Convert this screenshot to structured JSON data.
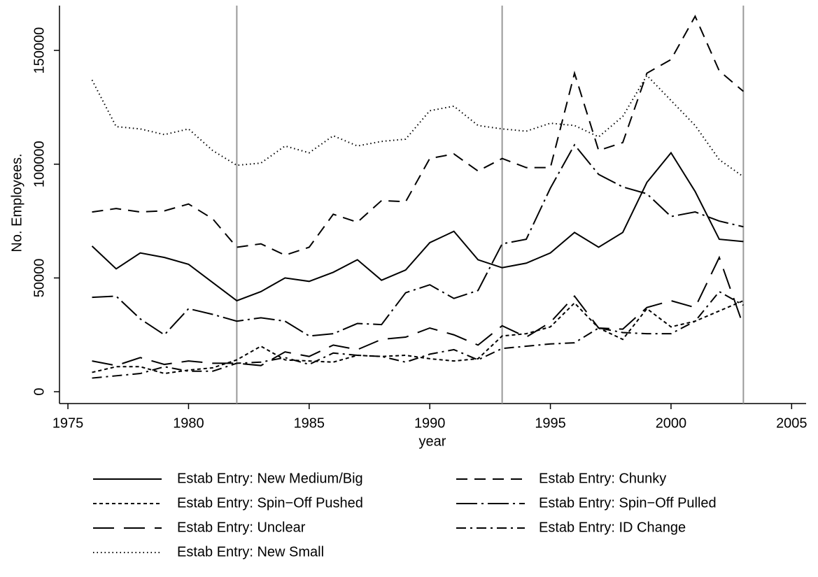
{
  "chart_data": {
    "type": "line",
    "x_label": "year",
    "y_label": "No. Employees.",
    "x": [
      1976,
      1977,
      1978,
      1979,
      1980,
      1981,
      1982,
      1983,
      1984,
      1985,
      1986,
      1987,
      1988,
      1989,
      1990,
      1991,
      1992,
      1993,
      1994,
      1995,
      1996,
      1997,
      1998,
      1999,
      2000,
      2001,
      2002,
      2003
    ],
    "xlim": [
      1974.65,
      2005.6
    ],
    "xticks": [
      1975,
      1980,
      1985,
      1990,
      1995,
      2000,
      2005
    ],
    "ylim": [
      -5200,
      169700
    ],
    "yticks": [
      0,
      50000,
      100000,
      150000
    ],
    "reference_lines": [
      1982,
      1993,
      2003
    ],
    "reference_color": "#999999",
    "legend": "bottom",
    "series": [
      {
        "name": "Estab Entry: New Medium/Big",
        "color": "#000000",
        "dash": "none",
        "values": [
          64000,
          54000,
          61000,
          59000,
          56000,
          48000,
          40000,
          44000,
          50000,
          48500,
          52500,
          58000,
          49000,
          53500,
          65500,
          70500,
          58000,
          54500,
          56500,
          61000,
          70000,
          63500,
          70000,
          92000,
          105000,
          88000,
          67000,
          66000
        ]
      },
      {
        "name": "Estab Entry: Chunky",
        "color": "#000000",
        "dash": "16,10",
        "values": [
          79000,
          80500,
          79000,
          79500,
          82500,
          76000,
          63500,
          65000,
          60000,
          63500,
          78000,
          74500,
          84000,
          83500,
          102500,
          104500,
          97000,
          102500,
          98500,
          98500,
          140000,
          106000,
          109500,
          140000,
          146000,
          165000,
          141000,
          132000
        ]
      },
      {
        "name": "Estab Entry: Spin−Off Pushed",
        "color": "#000000",
        "dash": "5,4",
        "values": [
          8500,
          11000,
          11000,
          8000,
          9500,
          10500,
          14000,
          20000,
          14000,
          13500,
          13000,
          16000,
          15500,
          16000,
          14500,
          13500,
          14500,
          24500,
          25500,
          28500,
          39000,
          28000,
          23000,
          36500,
          28500,
          31000,
          35500,
          40000
        ]
      },
      {
        "name": "Estab Entry: Spin−Off Pulled",
        "color": "#000000",
        "dash": "30,6,3,6",
        "values": [
          41500,
          42000,
          32000,
          25000,
          36500,
          34000,
          31000,
          32500,
          31000,
          24500,
          25500,
          30000,
          29500,
          43500,
          47000,
          41000,
          44500,
          65000,
          67000,
          89500,
          108500,
          95500,
          90000,
          87000,
          77000,
          79000,
          75000,
          72500
        ]
      },
      {
        "name": "Estab Entry: Unclear",
        "color": "#000000",
        "dash": "30,14",
        "values": [
          13500,
          11500,
          15000,
          12000,
          13500,
          12500,
          12500,
          11500,
          17500,
          15500,
          20500,
          18500,
          23000,
          24000,
          28000,
          25000,
          20500,
          29000,
          24000,
          30500,
          42000,
          28000,
          27500,
          37000,
          40000,
          37000,
          59000,
          29000
        ]
      },
      {
        "name": "Estab Entry: ID Change",
        "color": "#000000",
        "dash": "14,6,3,6",
        "values": [
          6000,
          7000,
          8000,
          11000,
          9000,
          9000,
          12500,
          13000,
          15000,
          12000,
          17000,
          16000,
          15500,
          13000,
          16500,
          18500,
          14000,
          19000,
          20000,
          21000,
          21500,
          28000,
          26000,
          25500,
          25500,
          31000,
          44000,
          38000
        ]
      },
      {
        "name": "Estab Entry: New Small",
        "color": "#000000",
        "dash": "1.5,4",
        "values": [
          137000,
          116500,
          115500,
          113000,
          115500,
          106000,
          99500,
          100500,
          108000,
          105000,
          112500,
          108000,
          110000,
          111000,
          123500,
          125500,
          117000,
          115500,
          114500,
          118000,
          117000,
          112000,
          121000,
          139000,
          128000,
          117000,
          102000,
          94500
        ]
      }
    ]
  }
}
